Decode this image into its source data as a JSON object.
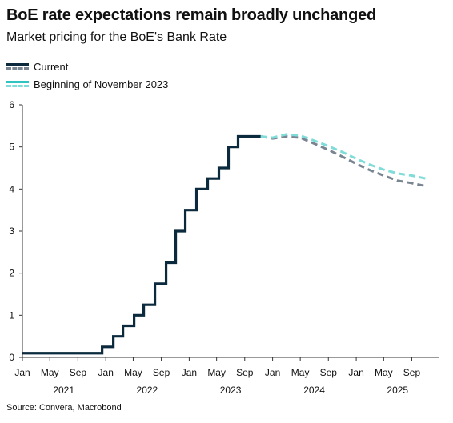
{
  "header": {
    "title": "BoE rate expectations remain broadly unchanged",
    "subtitle": "Market pricing for the BoE's Bank Rate"
  },
  "legend": [
    {
      "label": "Current",
      "solid_color": "#0b2a3d",
      "dash_color": "#7a8592"
    },
    {
      "label": "Beginning of November 2023",
      "solid_color": "#2fc4bf",
      "dash_color": "#7fdcd8"
    }
  ],
  "source": "Source: Convera, Macrobond",
  "colors": {
    "current_actual": "#0b2a3d",
    "current_forecast": "#7a8592",
    "nov_forecast": "#7fdcd8",
    "axis": "#333333"
  },
  "chart_data": {
    "type": "line",
    "title": "BoE rate expectations remain broadly unchanged",
    "subtitle": "Market pricing for the BoE's Bank Rate",
    "xlabel": "",
    "ylabel": "",
    "ylim": [
      0,
      6
    ],
    "yticks": [
      0,
      1,
      2,
      3,
      4,
      5,
      6
    ],
    "xlim": [
      "2021-01-01",
      "2025-12-31"
    ],
    "month_ticks": [
      {
        "date": "2021-01-01",
        "label": "Jan"
      },
      {
        "date": "2021-05-01",
        "label": "May"
      },
      {
        "date": "2021-09-01",
        "label": "Sep"
      },
      {
        "date": "2022-01-01",
        "label": "Jan"
      },
      {
        "date": "2022-05-01",
        "label": "May"
      },
      {
        "date": "2022-09-01",
        "label": "Sep"
      },
      {
        "date": "2023-01-01",
        "label": "Jan"
      },
      {
        "date": "2023-05-01",
        "label": "May"
      },
      {
        "date": "2023-09-01",
        "label": "Sep"
      },
      {
        "date": "2024-01-01",
        "label": "Jan"
      },
      {
        "date": "2024-05-01",
        "label": "May"
      },
      {
        "date": "2024-09-01",
        "label": "Sep"
      },
      {
        "date": "2025-01-01",
        "label": "Jan"
      },
      {
        "date": "2025-05-01",
        "label": "May"
      },
      {
        "date": "2025-09-01",
        "label": "Sep"
      }
    ],
    "year_labels": [
      {
        "date": "2021-07-01",
        "label": "2021"
      },
      {
        "date": "2022-07-01",
        "label": "2022"
      },
      {
        "date": "2023-07-01",
        "label": "2023"
      },
      {
        "date": "2024-07-01",
        "label": "2024"
      },
      {
        "date": "2025-07-01",
        "label": "2025"
      }
    ],
    "series": [
      {
        "name": "Current",
        "style": "step",
        "color": "#0b2a3d",
        "points": [
          [
            "2021-01-01",
            0.1
          ],
          [
            "2021-12-16",
            0.25
          ],
          [
            "2022-02-03",
            0.5
          ],
          [
            "2022-03-17",
            0.75
          ],
          [
            "2022-05-05",
            1.0
          ],
          [
            "2022-06-16",
            1.25
          ],
          [
            "2022-08-04",
            1.75
          ],
          [
            "2022-09-22",
            2.25
          ],
          [
            "2022-11-03",
            3.0
          ],
          [
            "2022-12-15",
            3.5
          ],
          [
            "2023-02-02",
            4.0
          ],
          [
            "2023-03-23",
            4.25
          ],
          [
            "2023-05-11",
            4.5
          ],
          [
            "2023-06-22",
            5.0
          ],
          [
            "2023-08-03",
            5.25
          ],
          [
            "2023-11-10",
            5.25
          ]
        ]
      },
      {
        "name": "Current",
        "style": "dashed",
        "color": "#7a8592",
        "points": [
          [
            "2023-11-10",
            5.25
          ],
          [
            "2024-01-01",
            5.2
          ],
          [
            "2024-03-01",
            5.25
          ],
          [
            "2024-05-01",
            5.22
          ],
          [
            "2024-07-01",
            5.08
          ],
          [
            "2024-09-01",
            4.93
          ],
          [
            "2024-11-01",
            4.77
          ],
          [
            "2025-01-01",
            4.6
          ],
          [
            "2025-03-01",
            4.45
          ],
          [
            "2025-05-01",
            4.32
          ],
          [
            "2025-07-01",
            4.2
          ],
          [
            "2025-09-01",
            4.14
          ],
          [
            "2025-11-01",
            4.07
          ]
        ]
      },
      {
        "name": "Beginning of November 2023",
        "style": "dashed",
        "color": "#7fdcd8",
        "points": [
          [
            "2023-11-10",
            5.25
          ],
          [
            "2024-01-01",
            5.22
          ],
          [
            "2024-03-01",
            5.3
          ],
          [
            "2024-05-01",
            5.27
          ],
          [
            "2024-07-01",
            5.15
          ],
          [
            "2024-09-01",
            5.02
          ],
          [
            "2024-11-01",
            4.88
          ],
          [
            "2025-01-01",
            4.72
          ],
          [
            "2025-03-01",
            4.58
          ],
          [
            "2025-05-01",
            4.46
          ],
          [
            "2025-07-01",
            4.37
          ],
          [
            "2025-09-01",
            4.32
          ],
          [
            "2025-11-01",
            4.25
          ]
        ]
      }
    ],
    "grid": false,
    "legend_position": "top-left"
  }
}
